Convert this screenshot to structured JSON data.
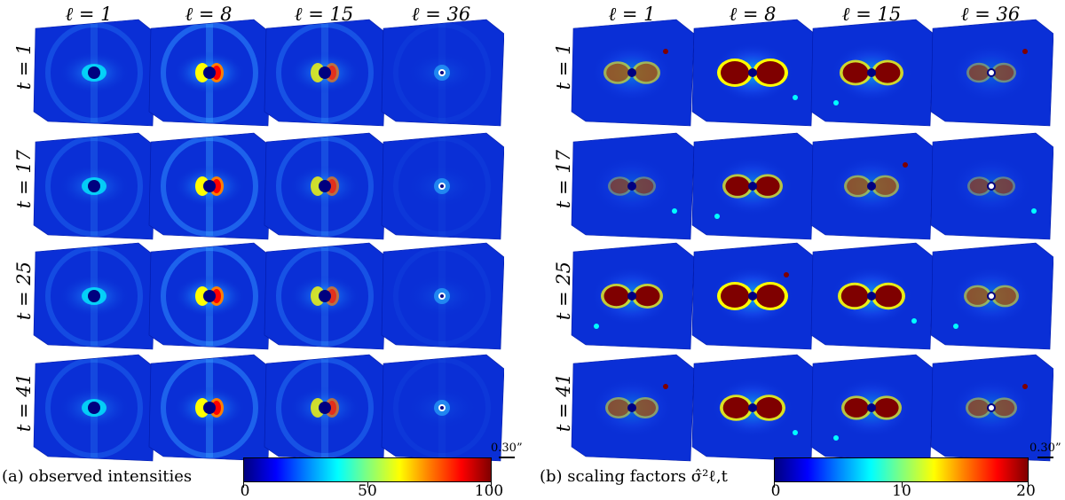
{
  "ell_labels": [
    "ℓ = 1",
    "ℓ = 8",
    "ℓ = 15",
    "ℓ = 36"
  ],
  "t_labels": [
    "t = 1",
    "t = 17",
    "t = 25",
    "t = 41"
  ],
  "panel_a": {
    "caption": "(a) observed intensities",
    "scale_label": "0.30”",
    "colorbar_ticks": [
      "0",
      "50",
      "100"
    ]
  },
  "panel_b": {
    "caption": "(b) scaling factors σ̂²ℓ,t",
    "scale_label": "0.30”",
    "colorbar_ticks": [
      "0",
      "10",
      "20"
    ]
  },
  "colors": {
    "jet": [
      "#00007f",
      "#0000ff",
      "#007fff",
      "#00ffff",
      "#7fff7f",
      "#ffff00",
      "#ff7f00",
      "#ff0000",
      "#7f0000"
    ],
    "background_tile": "#0a2fd6"
  }
}
